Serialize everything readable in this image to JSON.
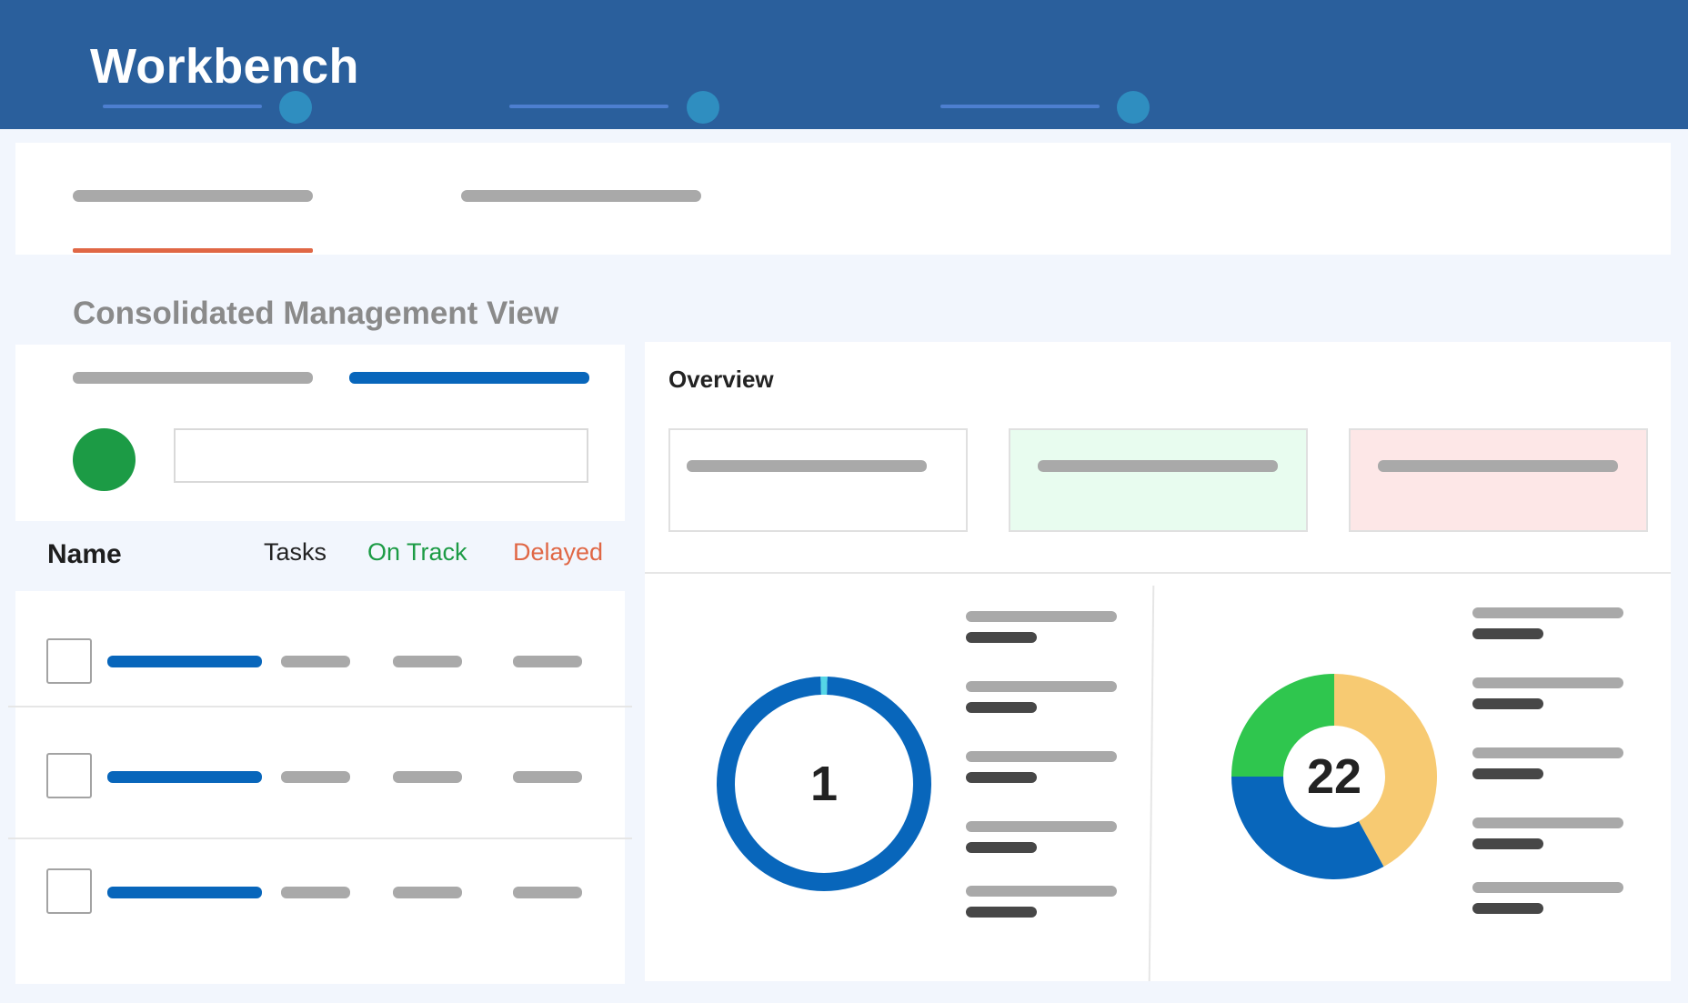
{
  "header": {
    "title": "Workbench",
    "nav_items": [
      {},
      {},
      {}
    ]
  },
  "tabs": [
    {
      "active": true
    },
    {
      "active": false
    }
  ],
  "page_title": "Consolidated Management View",
  "filter_panel": {
    "toggles": [
      {
        "active": false
      },
      {
        "active": true
      }
    ],
    "search_value": ""
  },
  "table": {
    "columns": {
      "name": "Name",
      "tasks": "Tasks",
      "on_track": "On Track",
      "delayed": "Delayed"
    },
    "row_count": 3
  },
  "overview": {
    "title": "Overview",
    "cards": [
      {
        "background": "#ffffff"
      },
      {
        "background": "#e8fcef"
      },
      {
        "background": "#fde7e7"
      }
    ]
  },
  "chart_data": [
    {
      "type": "donut",
      "center_label": "1",
      "values": [
        99,
        1
      ],
      "colors": [
        "#0866bb",
        "#55d6e6"
      ],
      "legend_items": 5
    },
    {
      "type": "donut",
      "center_label": "22",
      "values": [
        42,
        33,
        25
      ],
      "colors": [
        "#f7ca72",
        "#0866bb",
        "#2fc64e"
      ],
      "legend_items": 5
    }
  ],
  "colors": {
    "header": "#2a5f9c",
    "accent_blue": "#0866bb",
    "on_track": "#1c9b45",
    "delayed": "#e06745",
    "background": "#f2f6fd"
  }
}
